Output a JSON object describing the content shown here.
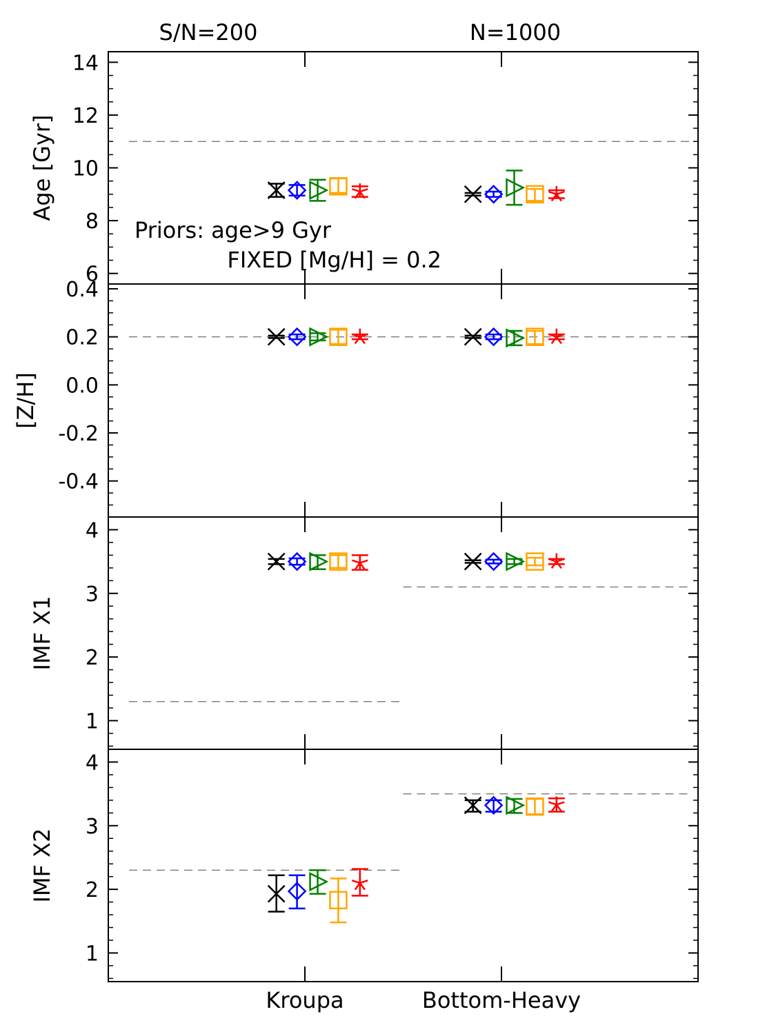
{
  "chart_data": {
    "type": "scatter",
    "title_left": "S/N=200",
    "title_right": "N=1000",
    "x_categories": [
      "Kroupa",
      "Bottom-Heavy"
    ],
    "annotation_line1": "Priors: age>9 Gyr",
    "annotation_line2": "FIXED [Mg/H] = 0.2",
    "series_colors": {
      "black": "#000000",
      "blue": "#0000ff",
      "green": "#008000",
      "orange": "#ffa500",
      "red": "#ff0000",
      "reference": "#808080"
    },
    "series_markers": [
      "x",
      "diamond",
      "triangle-right",
      "square",
      "star"
    ],
    "category_offsets": [
      -0.145,
      -0.04,
      0.065,
      0.17,
      0.28
    ],
    "panels": [
      {
        "ylabel": "Age [Gyr]",
        "ylim": [
          5.6,
          14.4
        ],
        "ticks": [
          6,
          8,
          10,
          12,
          14
        ],
        "tick_labels": [
          "6",
          "8",
          "10",
          "12",
          "14"
        ],
        "minor_step": 0.5,
        "reference": [
          {
            "x_from": -0.5,
            "x_to": 1.5,
            "value": 11
          }
        ],
        "groups": [
          {
            "category": "Kroupa",
            "points": [
              {
                "v": 9.15,
                "lo": 8.9,
                "hi": 9.4
              },
              {
                "v": 9.15,
                "lo": 8.95,
                "hi": 9.35
              },
              {
                "v": 9.15,
                "lo": 8.75,
                "hi": 9.55
              },
              {
                "v": 9.3,
                "lo": 9.05,
                "hi": 9.6
              },
              {
                "v": 9.1,
                "lo": 8.9,
                "hi": 9.3
              }
            ]
          },
          {
            "category": "Bottom-Heavy",
            "points": [
              {
                "v": 9.0,
                "lo": 8.95,
                "hi": 9.05
              },
              {
                "v": 9.0,
                "lo": 8.9,
                "hi": 9.1
              },
              {
                "v": 9.25,
                "lo": 8.6,
                "hi": 9.9
              },
              {
                "v": 9.0,
                "lo": 8.75,
                "hi": 9.2
              },
              {
                "v": 9.0,
                "lo": 8.85,
                "hi": 9.15
              }
            ]
          }
        ]
      },
      {
        "ylabel": "[Z/H]",
        "ylim": [
          -0.55,
          0.42
        ],
        "ticks": [
          -0.4,
          -0.2,
          0.0,
          0.2,
          0.4
        ],
        "tick_labels": [
          "-0.4",
          "-0.2",
          "0.0",
          "0.2",
          "0.4"
        ],
        "minor_step": 0.05,
        "reference": [
          {
            "x_from": -0.5,
            "x_to": 1.5,
            "value": 0.2
          }
        ],
        "groups": [
          {
            "category": "Kroupa",
            "points": [
              {
                "v": 0.2,
                "lo": 0.195,
                "hi": 0.205
              },
              {
                "v": 0.2,
                "lo": 0.19,
                "hi": 0.21
              },
              {
                "v": 0.2,
                "lo": 0.185,
                "hi": 0.215
              },
              {
                "v": 0.2,
                "lo": 0.17,
                "hi": 0.23
              },
              {
                "v": 0.2,
                "lo": 0.19,
                "hi": 0.21
              }
            ]
          },
          {
            "category": "Bottom-Heavy",
            "points": [
              {
                "v": 0.2,
                "lo": 0.195,
                "hi": 0.205
              },
              {
                "v": 0.2,
                "lo": 0.19,
                "hi": 0.21
              },
              {
                "v": 0.195,
                "lo": 0.165,
                "hi": 0.225
              },
              {
                "v": 0.2,
                "lo": 0.17,
                "hi": 0.225
              },
              {
                "v": 0.2,
                "lo": 0.19,
                "hi": 0.21
              }
            ]
          }
        ]
      },
      {
        "ylabel": "IMF X1",
        "ylim": [
          0.55,
          4.2
        ],
        "ticks": [
          1,
          2,
          3,
          4
        ],
        "tick_labels": [
          "1",
          "2",
          "3",
          "4"
        ],
        "minor_step": 0.2,
        "reference": [
          {
            "x_from": -0.5,
            "x_to": 0.5,
            "value": 1.3
          },
          {
            "x_from": 0.5,
            "x_to": 1.5,
            "value": 3.1
          }
        ],
        "groups": [
          {
            "category": "Kroupa",
            "points": [
              {
                "v": 3.5,
                "lo": 3.46,
                "hi": 3.54
              },
              {
                "v": 3.5,
                "lo": 3.45,
                "hi": 3.55
              },
              {
                "v": 3.5,
                "lo": 3.38,
                "hi": 3.6
              },
              {
                "v": 3.5,
                "lo": 3.4,
                "hi": 3.6
              },
              {
                "v": 3.48,
                "lo": 3.37,
                "hi": 3.6
              }
            ]
          },
          {
            "category": "Bottom-Heavy",
            "points": [
              {
                "v": 3.5,
                "lo": 3.48,
                "hi": 3.52
              },
              {
                "v": 3.5,
                "lo": 3.47,
                "hi": 3.53
              },
              {
                "v": 3.5,
                "lo": 3.46,
                "hi": 3.54
              },
              {
                "v": 3.5,
                "lo": 3.44,
                "hi": 3.56
              },
              {
                "v": 3.5,
                "lo": 3.46,
                "hi": 3.54
              }
            ]
          }
        ]
      },
      {
        "ylabel": "IMF X2",
        "ylim": [
          0.55,
          4.2
        ],
        "ticks": [
          1,
          2,
          3,
          4
        ],
        "tick_labels": [
          "1",
          "2",
          "3",
          "4"
        ],
        "minor_step": 0.2,
        "reference": [
          {
            "x_from": -0.5,
            "x_to": 0.5,
            "value": 2.3
          },
          {
            "x_from": 0.5,
            "x_to": 1.5,
            "value": 3.5
          }
        ],
        "groups": [
          {
            "category": "Kroupa",
            "points": [
              {
                "v": 1.93,
                "lo": 1.65,
                "hi": 2.22
              },
              {
                "v": 1.97,
                "lo": 1.7,
                "hi": 2.22
              },
              {
                "v": 2.12,
                "lo": 1.93,
                "hi": 2.3
              },
              {
                "v": 1.83,
                "lo": 1.48,
                "hi": 2.17
              },
              {
                "v": 2.1,
                "lo": 1.9,
                "hi": 2.32
              }
            ]
          },
          {
            "category": "Bottom-Heavy",
            "points": [
              {
                "v": 3.32,
                "lo": 3.22,
                "hi": 3.4
              },
              {
                "v": 3.32,
                "lo": 3.22,
                "hi": 3.4
              },
              {
                "v": 3.32,
                "lo": 3.2,
                "hi": 3.42
              },
              {
                "v": 3.3,
                "lo": 3.18,
                "hi": 3.42
              },
              {
                "v": 3.33,
                "lo": 3.22,
                "hi": 3.43
              }
            ]
          }
        ]
      }
    ]
  }
}
